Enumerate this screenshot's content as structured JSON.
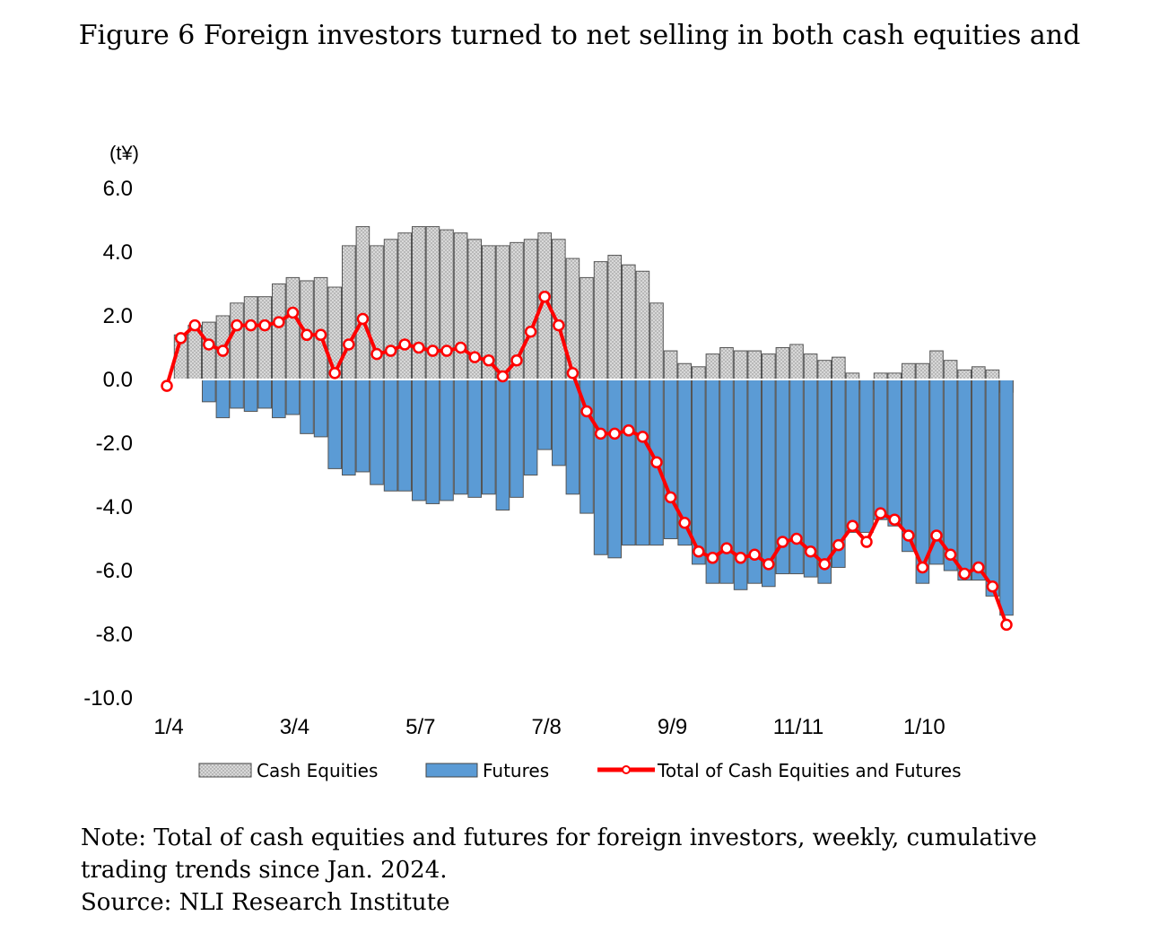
{
  "title": "Figure 6 Foreign investors turned to net selling in both cash equities and",
  "note_line1": "Note: Total of cash equities and futures for foreign investors, weekly, cumulative",
  "note_line2": "trading trends since Jan. 2024.",
  "source": "Source: NLI Research Institute",
  "chart_data": {
    "type": "bar",
    "ylabel": "(t¥)",
    "ylim": [
      -10.0,
      6.0
    ],
    "yticks": [
      "6.0",
      "4.0",
      "2.0",
      "0.0",
      "-2.0",
      "-4.0",
      "-6.0",
      "-8.0",
      "-10.0"
    ],
    "xtick_labels": [
      "1/4",
      "3/4",
      "5/7",
      "7/8",
      "9/9",
      "11/11",
      "1/10"
    ],
    "legend_position": "bottom",
    "colors": {
      "cash": "#b8b8b8",
      "futures": "#5b9bd5",
      "total": "#ff0000"
    },
    "series": [
      {
        "name": "Cash Equities",
        "values": [
          0,
          1.4,
          1.7,
          1.8,
          2.0,
          2.4,
          2.6,
          2.6,
          3.0,
          3.2,
          3.1,
          3.2,
          2.9,
          4.2,
          4.8,
          4.2,
          4.4,
          4.6,
          4.8,
          4.8,
          4.7,
          4.6,
          4.4,
          4.2,
          4.2,
          4.3,
          4.4,
          4.6,
          4.4,
          3.8,
          3.2,
          3.7,
          3.9,
          3.6,
          3.4,
          2.4,
          0.9,
          0.5,
          0.4,
          0.8,
          1.0,
          0.9,
          0.9,
          0.8,
          1.0,
          1.1,
          0.8,
          0.6,
          0.7,
          0.2,
          -0.3,
          0.2,
          0.2,
          0.5,
          0.5,
          0.9,
          0.6,
          0.3,
          0.4,
          0.3,
          -0.4
        ]
      },
      {
        "name": "Futures",
        "values": [
          0,
          0,
          0,
          -0.7,
          -1.2,
          -0.9,
          -1.0,
          -0.9,
          -1.2,
          -1.1,
          -1.7,
          -1.8,
          -2.8,
          -3.0,
          -2.9,
          -3.3,
          -3.5,
          -3.5,
          -3.8,
          -3.9,
          -3.8,
          -3.6,
          -3.7,
          -3.6,
          -4.1,
          -3.7,
          -3.0,
          -2.2,
          -2.7,
          -3.6,
          -4.2,
          -5.5,
          -5.6,
          -5.2,
          -5.2,
          -5.2,
          -5.0,
          -5.2,
          -5.8,
          -6.4,
          -6.4,
          -6.6,
          -6.4,
          -6.5,
          -6.1,
          -6.1,
          -6.2,
          -6.4,
          -5.9,
          -4.8,
          -4.8,
          -4.4,
          -4.6,
          -5.4,
          -6.4,
          -5.8,
          -6.0,
          -6.3,
          -6.3,
          -6.8,
          -7.4
        ]
      },
      {
        "name": "Total of Cash Equities and Futures",
        "values": [
          -0.2,
          1.3,
          1.7,
          1.1,
          0.9,
          1.7,
          1.7,
          1.7,
          1.8,
          2.1,
          1.4,
          1.4,
          0.2,
          1.1,
          1.9,
          0.8,
          0.9,
          1.1,
          1.0,
          0.9,
          0.9,
          1.0,
          0.7,
          0.6,
          0.1,
          0.6,
          1.5,
          2.6,
          1.7,
          0.2,
          -1.0,
          -1.7,
          -1.7,
          -1.6,
          -1.8,
          -2.6,
          -3.7,
          -4.5,
          -5.4,
          -5.6,
          -5.3,
          -5.6,
          -5.5,
          -5.8,
          -5.1,
          -5.0,
          -5.4,
          -5.8,
          -5.2,
          -4.6,
          -5.1,
          -4.2,
          -4.4,
          -4.9,
          -5.9,
          -4.9,
          -5.5,
          -6.1,
          -5.9,
          -6.5,
          -7.7
        ]
      }
    ]
  }
}
